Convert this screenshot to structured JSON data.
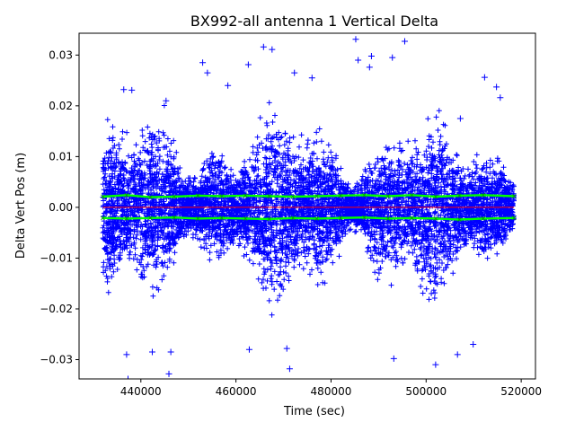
{
  "chart_data": {
    "type": "scatter",
    "title": "BX992-all antenna 1 Vertical Delta",
    "xlabel": "Time (sec)",
    "ylabel": "Delta Vert Pos (m)",
    "xlim": [
      427000,
      523000
    ],
    "ylim": [
      -0.0338,
      0.0343
    ],
    "x_ticks": [
      440000,
      460000,
      480000,
      500000,
      520000
    ],
    "x_tick_labels": [
      "440000",
      "460000",
      "480000",
      "500000",
      "520000"
    ],
    "y_ticks": [
      -0.03,
      -0.02,
      -0.01,
      0.0,
      0.01,
      0.02,
      0.03
    ],
    "y_tick_labels": [
      "−0.03",
      "−0.02",
      "−0.01",
      "0.00",
      "0.01",
      "0.02",
      "0.03"
    ],
    "grid": false,
    "legend": "none",
    "series": [
      {
        "marker": "+",
        "color": "#0000ff",
        "x_range": [
          432000,
          518500
        ],
        "points": [
          [
            436400,
            0.0232
          ],
          [
            437000,
            -0.029
          ],
          [
            438100,
            0.0231
          ],
          [
            437300,
            -0.0338
          ],
          [
            445900,
            -0.0328
          ],
          [
            453000,
            0.0285
          ],
          [
            454000,
            0.0265
          ],
          [
            462600,
            0.0281
          ],
          [
            465800,
            0.0316
          ],
          [
            467600,
            0.0311
          ],
          [
            471300,
            -0.0318
          ],
          [
            472300,
            0.0265
          ],
          [
            476000,
            0.0255
          ],
          [
            485200,
            0.0331
          ],
          [
            485700,
            0.029
          ],
          [
            488100,
            0.0276
          ],
          [
            488500,
            0.0298
          ],
          [
            492900,
            0.0295
          ],
          [
            493200,
            -0.0298
          ],
          [
            495500,
            0.0327
          ],
          [
            502000,
            -0.031
          ],
          [
            506600,
            -0.029
          ],
          [
            509900,
            -0.027
          ],
          [
            512300,
            0.0256
          ],
          [
            514800,
            0.0237
          ],
          [
            515600,
            0.0216
          ],
          [
            507200,
            0.0175
          ],
          [
            442400,
            -0.0285
          ],
          [
            446300,
            -0.0285
          ],
          [
            462800,
            -0.028
          ],
          [
            470700,
            -0.0278
          ],
          [
            445300,
            0.021
          ],
          [
            458300,
            0.024
          ]
        ]
      },
      {
        "marker": "x",
        "color": "#00ff00",
        "values": [
          [
            432000,
            0.0021,
            -0.0021
          ],
          [
            437000,
            0.0024,
            -0.0022
          ],
          [
            442000,
            0.002,
            -0.0021
          ],
          [
            447000,
            0.0021,
            -0.002
          ],
          [
            452000,
            0.0023,
            -0.0022
          ],
          [
            457000,
            0.0022,
            -0.0021
          ],
          [
            462000,
            0.0023,
            -0.0022
          ],
          [
            467000,
            0.0022,
            -0.0023
          ],
          [
            472000,
            0.0021,
            -0.0021
          ],
          [
            477000,
            0.0022,
            -0.0022
          ],
          [
            482000,
            0.0023,
            -0.0021
          ],
          [
            487000,
            0.0024,
            -0.002
          ],
          [
            492000,
            0.0022,
            -0.0022
          ],
          [
            497000,
            0.0024,
            -0.0021
          ],
          [
            502000,
            0.0021,
            -0.0022
          ],
          [
            507000,
            0.0023,
            -0.0024
          ],
          [
            512000,
            0.0024,
            -0.0022
          ],
          [
            518500,
            0.0022,
            -0.0021
          ]
        ]
      },
      {
        "marker": "line",
        "color": "#ff0000",
        "values": [
          [
            432000,
            0.0
          ],
          [
            518500,
            0.0
          ]
        ]
      }
    ]
  }
}
